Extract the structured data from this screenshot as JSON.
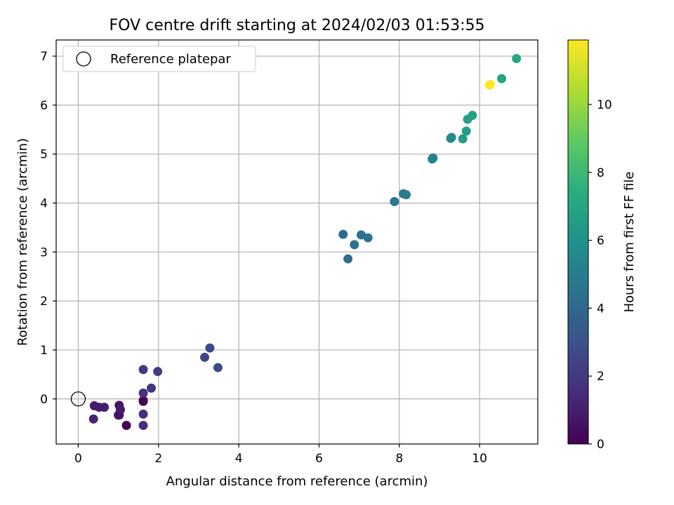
{
  "chart_data": {
    "type": "scatter",
    "title": "FOV centre drift starting at 2024/02/03 01:53:55",
    "xlabel": "Angular distance from reference (arcmin)",
    "ylabel": "Rotation from reference (arcmin)",
    "xlim": [
      -0.55,
      11.45
    ],
    "ylim": [
      -0.92,
      7.33
    ],
    "xticks": [
      0,
      2,
      4,
      6,
      8,
      10
    ],
    "yticks": [
      0,
      1,
      2,
      3,
      4,
      5,
      6,
      7
    ],
    "grid": true,
    "legend": {
      "position": "top-left",
      "entries": [
        "Reference platepar"
      ]
    },
    "reference_point": {
      "x": 0,
      "y": 0
    },
    "colorbar": {
      "label": "Hours from first FF file",
      "colormap": "viridis",
      "range": [
        0,
        11.9
      ],
      "ticks": [
        0,
        2,
        4,
        6,
        8,
        10
      ]
    },
    "points": [
      {
        "x": 1.2,
        "y": -0.54,
        "t": 0.05
      },
      {
        "x": 1.62,
        "y": -0.03,
        "t": 0.25
      },
      {
        "x": 1.62,
        "y": -0.05,
        "t": 0.15
      },
      {
        "x": 1.0,
        "y": -0.33,
        "t": 0.5
      },
      {
        "x": 1.02,
        "y": -0.33,
        "t": 0.6
      },
      {
        "x": 1.02,
        "y": -0.13,
        "t": 0.7
      },
      {
        "x": 1.05,
        "y": -0.22,
        "t": 0.8
      },
      {
        "x": 0.4,
        "y": -0.14,
        "t": 0.9
      },
      {
        "x": 0.52,
        "y": -0.17,
        "t": 0.95
      },
      {
        "x": 0.65,
        "y": -0.17,
        "t": 1.0
      },
      {
        "x": 0.38,
        "y": -0.41,
        "t": 1.2
      },
      {
        "x": 1.62,
        "y": -0.54,
        "t": 1.5
      },
      {
        "x": 1.62,
        "y": -0.31,
        "t": 1.6
      },
      {
        "x": 1.62,
        "y": 0.12,
        "t": 1.7
      },
      {
        "x": 1.82,
        "y": 0.22,
        "t": 1.8
      },
      {
        "x": 1.62,
        "y": 0.6,
        "t": 1.9
      },
      {
        "x": 1.98,
        "y": 0.56,
        "t": 2.0
      },
      {
        "x": 3.15,
        "y": 0.85,
        "t": 2.5
      },
      {
        "x": 3.28,
        "y": 1.04,
        "t": 2.6
      },
      {
        "x": 3.48,
        "y": 0.64,
        "t": 2.7
      },
      {
        "x": 6.6,
        "y": 3.36,
        "t": 4.1
      },
      {
        "x": 6.72,
        "y": 2.86,
        "t": 4.2
      },
      {
        "x": 6.88,
        "y": 3.15,
        "t": 4.3
      },
      {
        "x": 7.05,
        "y": 3.35,
        "t": 4.4
      },
      {
        "x": 7.22,
        "y": 3.29,
        "t": 4.5
      },
      {
        "x": 7.88,
        "y": 4.03,
        "t": 4.7
      },
      {
        "x": 8.1,
        "y": 4.19,
        "t": 4.8
      },
      {
        "x": 8.17,
        "y": 4.17,
        "t": 4.9
      },
      {
        "x": 8.82,
        "y": 4.9,
        "t": 5.2
      },
      {
        "x": 8.84,
        "y": 4.92,
        "t": 5.25
      },
      {
        "x": 9.28,
        "y": 5.32,
        "t": 5.6
      },
      {
        "x": 9.3,
        "y": 5.34,
        "t": 5.65
      },
      {
        "x": 9.58,
        "y": 5.31,
        "t": 6.5
      },
      {
        "x": 9.67,
        "y": 5.47,
        "t": 6.6
      },
      {
        "x": 9.7,
        "y": 5.71,
        "t": 6.7
      },
      {
        "x": 9.82,
        "y": 5.79,
        "t": 6.8
      },
      {
        "x": 10.55,
        "y": 6.54,
        "t": 6.9
      },
      {
        "x": 10.92,
        "y": 6.95,
        "t": 7.0
      },
      {
        "x": 10.25,
        "y": 6.41,
        "t": 11.8
      },
      {
        "x": 10.27,
        "y": 6.42,
        "t": 11.9
      }
    ]
  }
}
